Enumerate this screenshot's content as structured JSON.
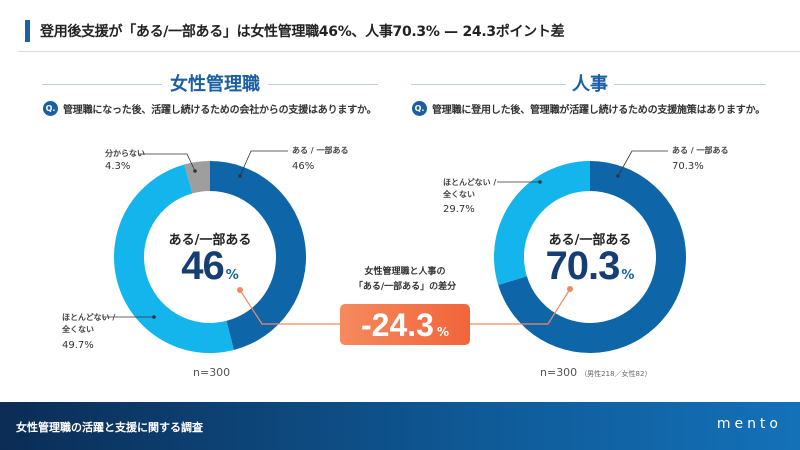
{
  "header": {
    "title": "登用後支援が「ある/一部ある」は女性管理職46%、人事70.3% — 24.3ポイント差"
  },
  "colors": {
    "accent": "#1a5fa3",
    "dark_blue": "#0e66a8",
    "light_blue": "#14b5ec",
    "gray": "#9e9e9e",
    "orange": "#f2643a",
    "navy_text": "#163e73"
  },
  "left": {
    "title": "女性管理職",
    "q_icon": "Q.",
    "question": "管理職になった後、活躍し続けるための会社からの支援はありますか。",
    "center_label": "ある/一部ある",
    "center_value": "46",
    "center_unit": "%",
    "labels": {
      "yes": "ある / 一部ある",
      "yes_value": "46%",
      "no_line1": "ほとんどない /",
      "no_line2": "全くない",
      "no_value": "49.7%",
      "unknown": "分からない",
      "unknown_value": "4.3%"
    },
    "n": "n=300"
  },
  "right": {
    "title": "人事",
    "q_icon": "Q.",
    "question": "管理職に登用した後、管理職が活躍し続けるための支援施策はありますか。",
    "center_label": "ある/一部ある",
    "center_value": "70.3",
    "center_unit": "%",
    "labels": {
      "yes": "ある / 一部ある",
      "yes_value": "70.3%",
      "no_line1": "ほとんどない /",
      "no_line2": "全くない",
      "no_value": "29.7%"
    },
    "n": "n=300",
    "n_sub": "（男性218／女性82）"
  },
  "diff": {
    "caption_line1": "女性管理職と人事の",
    "caption_line2": "「ある/一部ある」の差分",
    "value": "-24.3",
    "unit": "%"
  },
  "footer": {
    "title": "女性管理職の活躍と支援に関する調査",
    "logo": "mento"
  },
  "chart_data": [
    {
      "type": "pie",
      "title": "女性管理職",
      "subtitle": "管理職になった後、活躍し続けるための会社からの支援はありますか。",
      "categories": [
        "ある / 一部ある",
        "ほとんどない / 全くない",
        "分からない"
      ],
      "values": [
        46,
        49.7,
        4.3
      ],
      "colors": [
        "#0e66a8",
        "#14b5ec",
        "#9e9e9e"
      ],
      "donut": true,
      "center_text": "ある/一部ある 46%",
      "n": 300
    },
    {
      "type": "pie",
      "title": "人事",
      "subtitle": "管理職に登用した後、管理職が活躍し続けるための支援施策はありますか。",
      "categories": [
        "ある / 一部ある",
        "ほとんどない / 全くない"
      ],
      "values": [
        70.3,
        29.7
      ],
      "colors": [
        "#0e66a8",
        "#14b5ec"
      ],
      "donut": true,
      "center_text": "ある/一部ある 70.3%",
      "n": 300,
      "n_breakdown": {
        "男性": 218,
        "女性": 82
      }
    }
  ]
}
